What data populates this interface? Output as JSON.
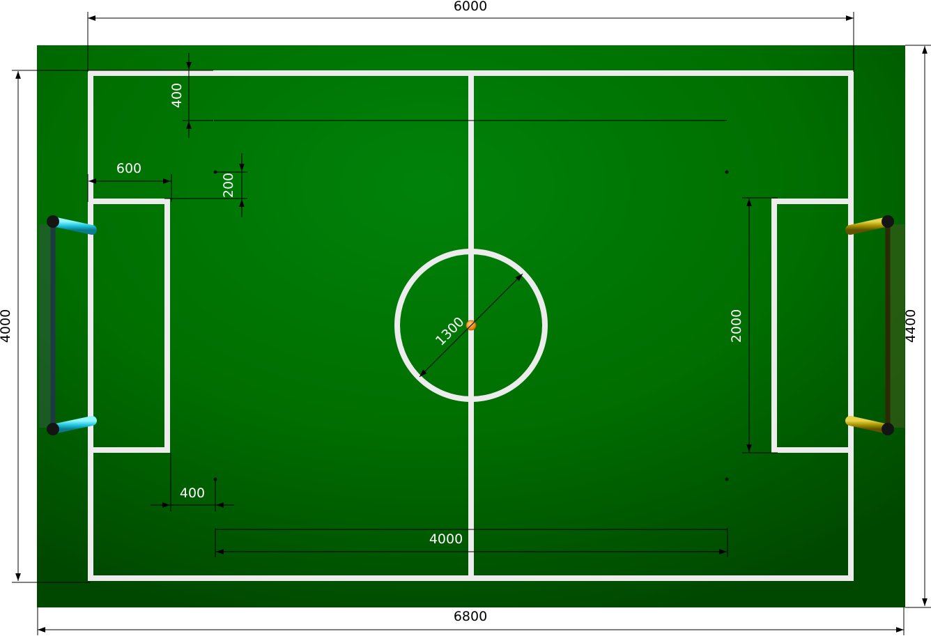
{
  "dimensions": {
    "field_length": "6000",
    "carpet_length": "6800",
    "field_width": "4000",
    "carpet_width": "4400",
    "boundary_offset": "400",
    "penalty_depth": "600",
    "mark_offset": "200",
    "penalty_width": "2000",
    "center_diameter": "1300",
    "mark_spacing_x": "400",
    "mark_distance": "4000"
  },
  "colors": {
    "carpet_dark": "#005200",
    "carpet_light": "#008000",
    "lines": "#f2f2f2",
    "goal_left": "#2fd6e6",
    "goal_right": "#b6a400",
    "ball": "#f39a1a"
  },
  "objects": {
    "goal_left": "left goal",
    "goal_right": "right goal",
    "ball": "ball"
  }
}
